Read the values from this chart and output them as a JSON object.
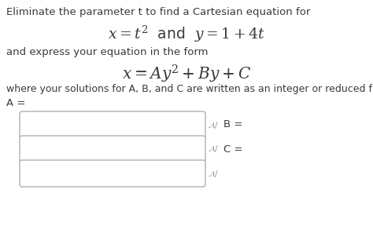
{
  "bg_color": "#ffffff",
  "line1": "Eliminate the parameter t to find a Cartesian equation for",
  "line2_latex": "$x = t^2$  and  $y = 1 + 4t$",
  "line3": "and express your equation in the form",
  "line4_latex": "$x = Ay^2 + By + C$",
  "line5": "where your solutions for A, B, and C are written as an integer or reduced fraction.",
  "line6": "A =",
  "label_B": "B =",
  "label_C": "C =",
  "body_fontsize": 9.5,
  "math_fontsize": 13.5,
  "small_math_fontsize": 12.5,
  "text_color": "#3a3a3a",
  "box_edge_color": "#b0b0b0",
  "box_fill": "#ffffff",
  "icon_color": "#999999"
}
